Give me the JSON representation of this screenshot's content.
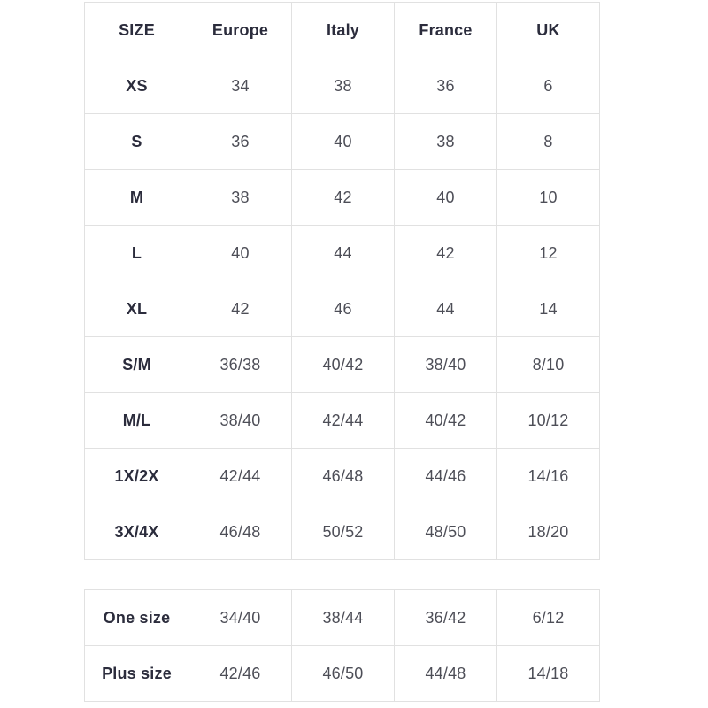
{
  "colors": {
    "background": "#ffffff",
    "border": "#e1e1e1",
    "header_text": "#2b2c3c",
    "cell_text": "#4d4e57"
  },
  "size_table": {
    "header": [
      "SIZE",
      "Europe",
      "Italy",
      "France",
      "UK"
    ],
    "rows": [
      [
        "XS",
        "34",
        "38",
        "36",
        "6"
      ],
      [
        "S",
        "36",
        "40",
        "38",
        "8"
      ],
      [
        "M",
        "38",
        "42",
        "40",
        "10"
      ],
      [
        "L",
        "40",
        "44",
        "42",
        "12"
      ],
      [
        "XL",
        "42",
        "46",
        "44",
        "14"
      ],
      [
        "S/M",
        "36/38",
        "40/42",
        "38/40",
        "8/10"
      ],
      [
        "M/L",
        "38/40",
        "42/44",
        "40/42",
        "10/12"
      ],
      [
        "1X/2X",
        "42/44",
        "46/48",
        "44/46",
        "14/16"
      ],
      [
        "3X/4X",
        "46/48",
        "50/52",
        "48/50",
        "18/20"
      ]
    ]
  },
  "special_size_table": {
    "rows": [
      [
        "One size",
        "34/40",
        "38/44",
        "36/42",
        "6/12"
      ],
      [
        "Plus size",
        "42/46",
        "46/50",
        "44/48",
        "14/18"
      ]
    ]
  }
}
